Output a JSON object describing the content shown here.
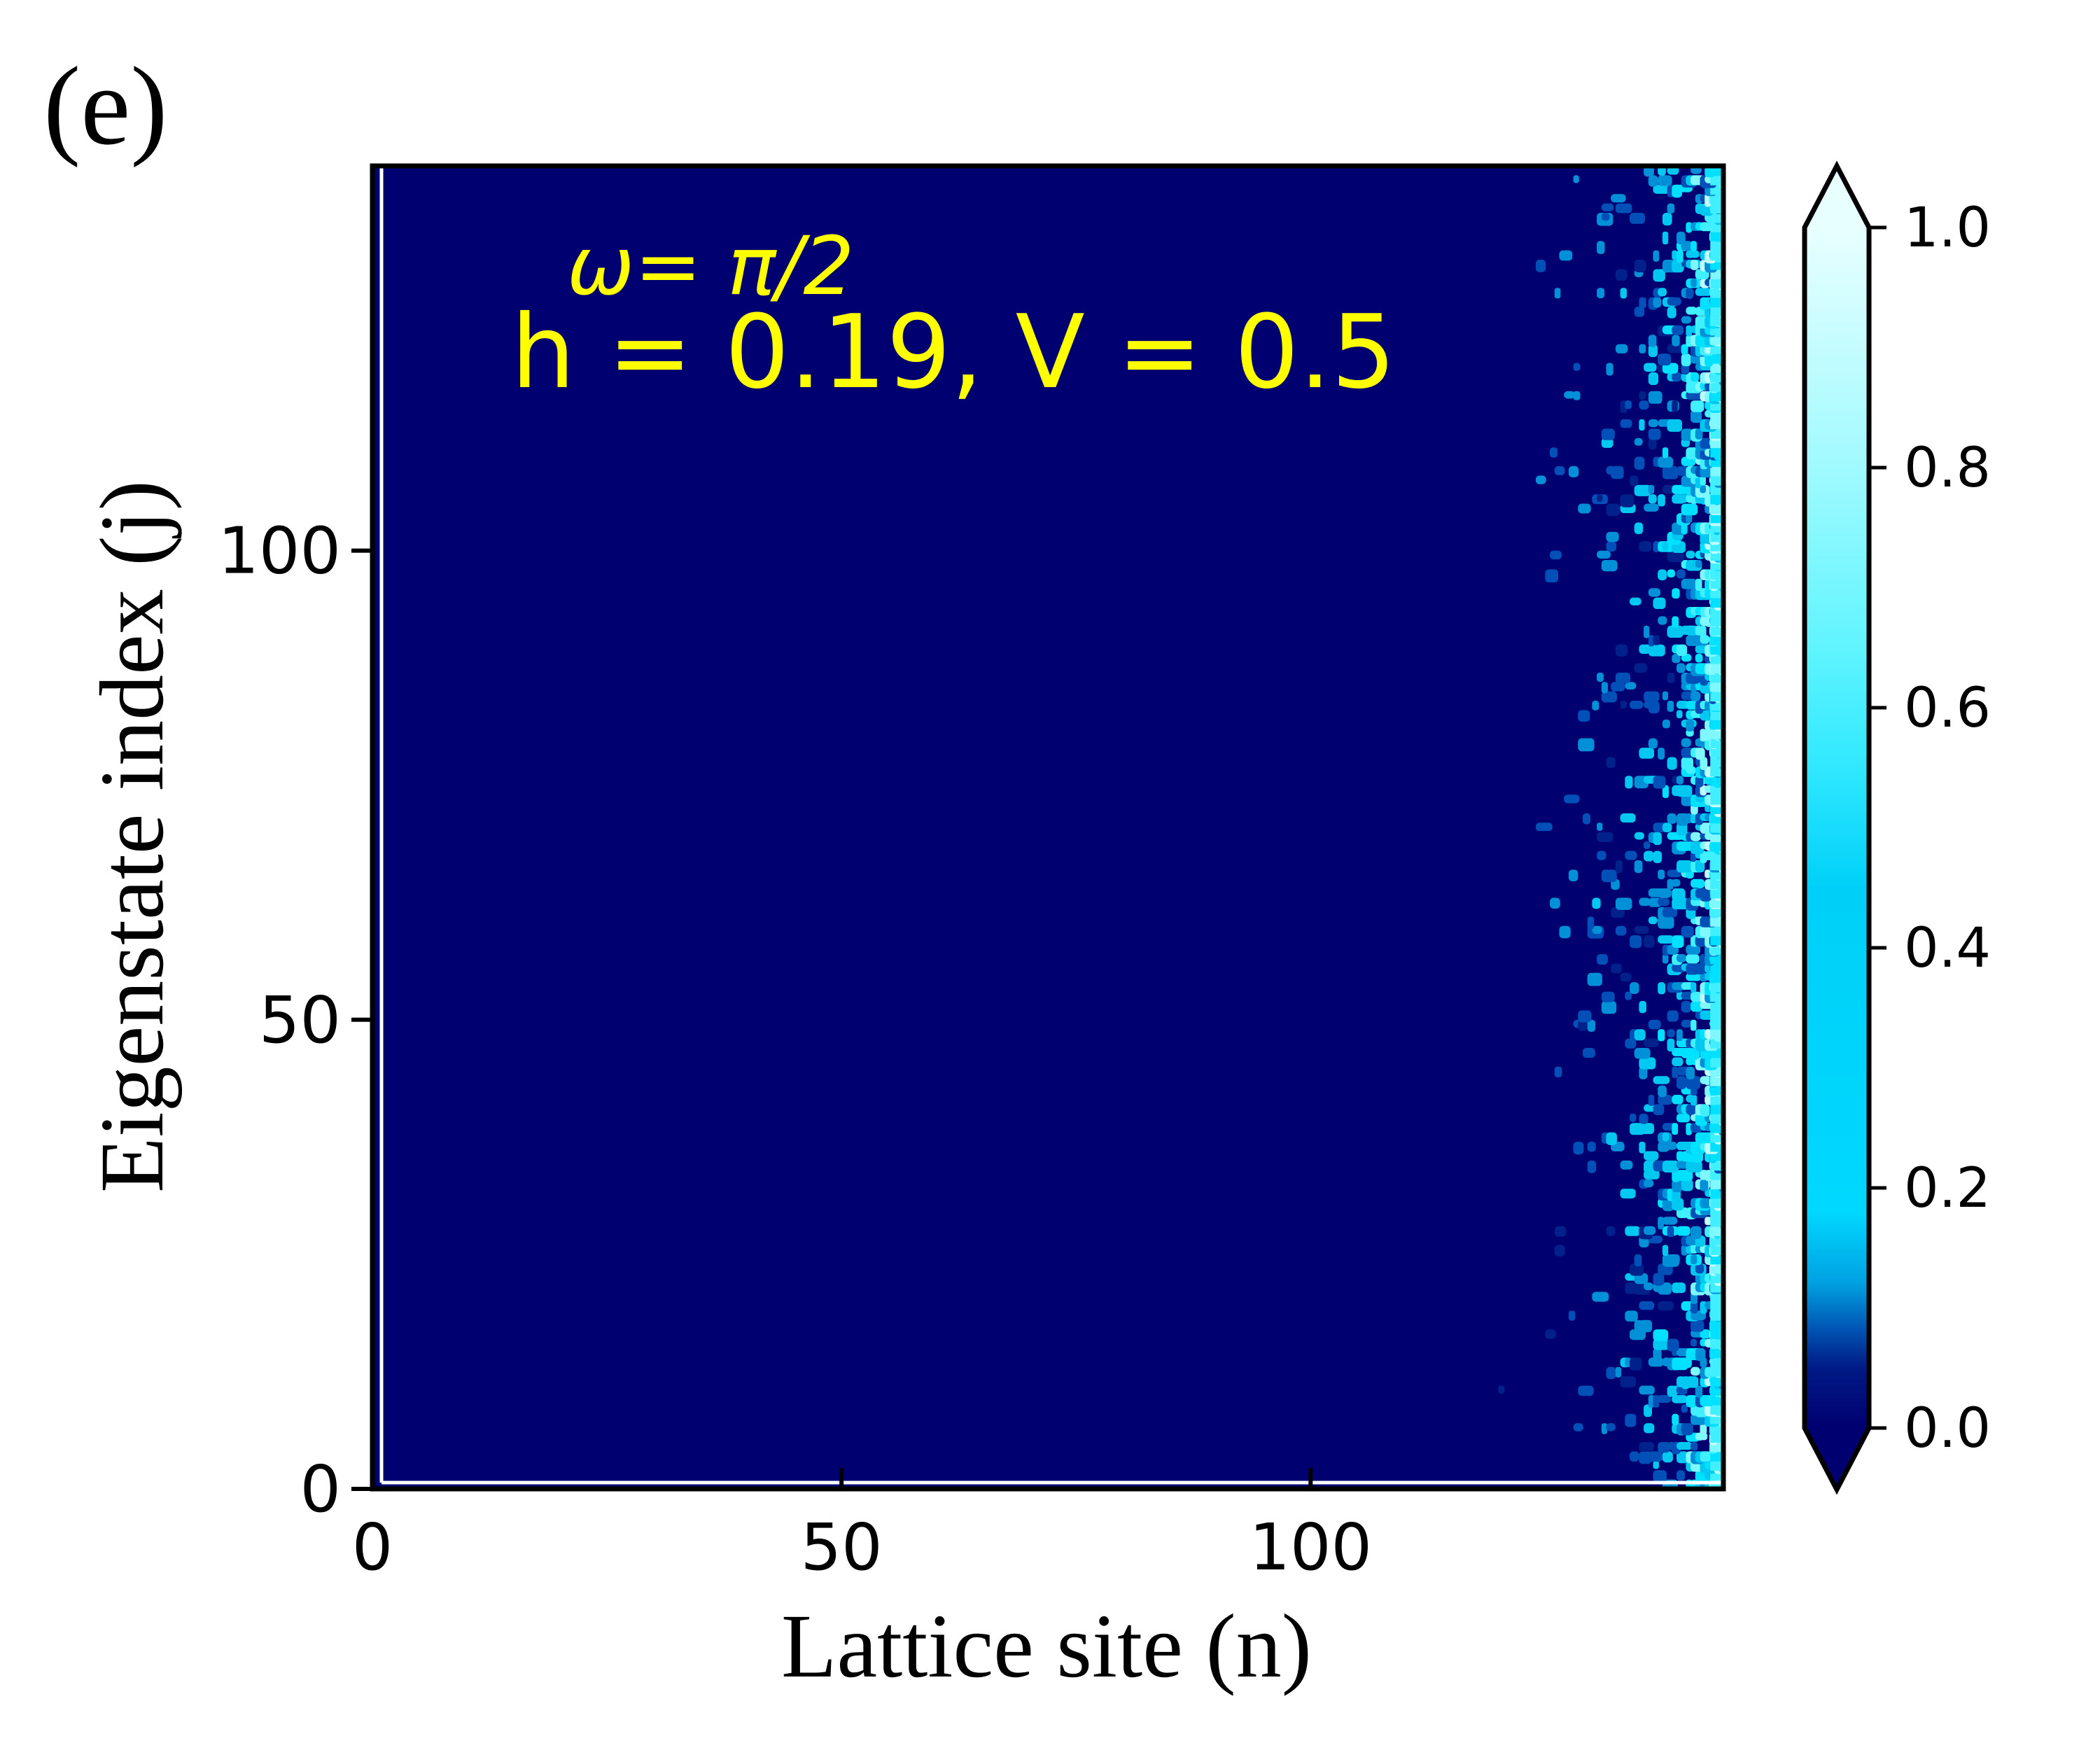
{
  "chart_data": {
    "type": "heatmap",
    "panel_label": "(e)",
    "annotation": {
      "line1": "ω= π/2",
      "line2": "h = 0.19, V = 0.5"
    },
    "xlabel": "Lattice site (n)",
    "ylabel": "Eigenstate index (j)",
    "xlim": [
      0,
      144
    ],
    "ylim": [
      0,
      141
    ],
    "xticks": [
      0,
      50,
      100
    ],
    "yticks": [
      0,
      50,
      100
    ],
    "colorbar": {
      "range": [
        0.0,
        1.0
      ],
      "ticks": [
        "0.0",
        "0.2",
        "0.4",
        "0.6",
        "0.8",
        "1.0"
      ],
      "extend": "both",
      "colors": [
        "#000070",
        "#00208a",
        "#0050b8",
        "#0090d8",
        "#00c8f0",
        "#00e0ff",
        "#40f0ff",
        "#80f8ff",
        "#c0fcff",
        "#e8ffff"
      ]
    },
    "description_of_data": {
      "localized_region_n": [
        125,
        144
      ],
      "background_value": 0.0
    }
  }
}
